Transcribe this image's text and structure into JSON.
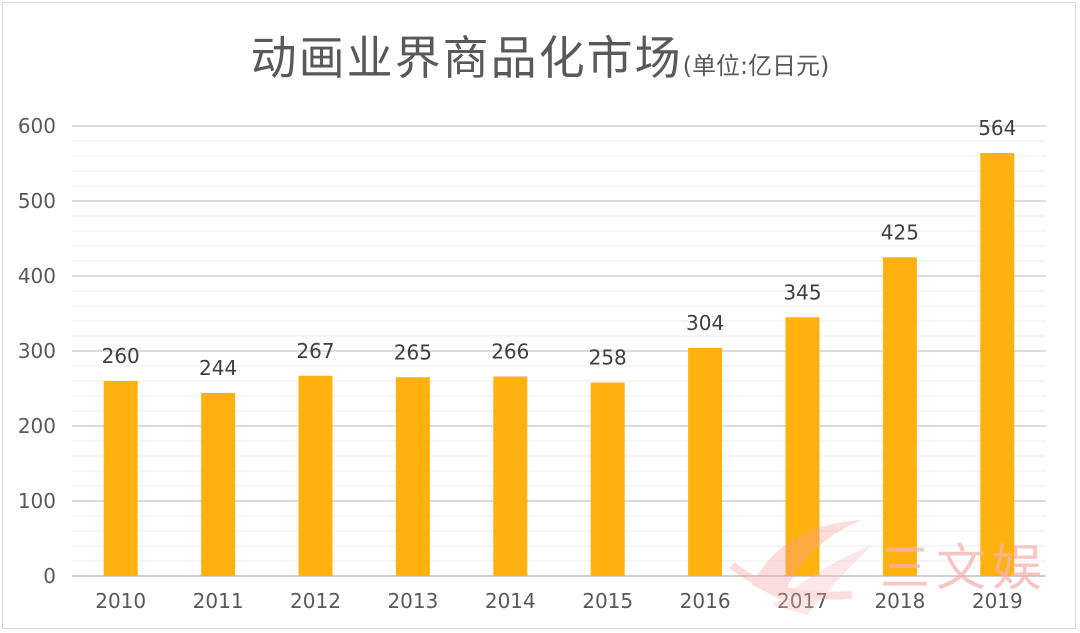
{
  "chart_data": {
    "type": "bar",
    "title": "动画业界商品化市场",
    "title_unit": "(单位:亿日元)",
    "categories": [
      "2010",
      "2011",
      "2012",
      "2013",
      "2014",
      "2015",
      "2016",
      "2017",
      "2018",
      "2019"
    ],
    "values": [
      260,
      244,
      267,
      265,
      266,
      258,
      304,
      345,
      425,
      564
    ],
    "ylim": [
      0,
      600
    ],
    "yticks": [
      0,
      100,
      200,
      300,
      400,
      500,
      600
    ],
    "grid": true,
    "bar_color": "#FFB20F",
    "data_labels": true
  },
  "watermark": {
    "text": "三文娱",
    "icon": "sanwenyu-logo-icon"
  }
}
